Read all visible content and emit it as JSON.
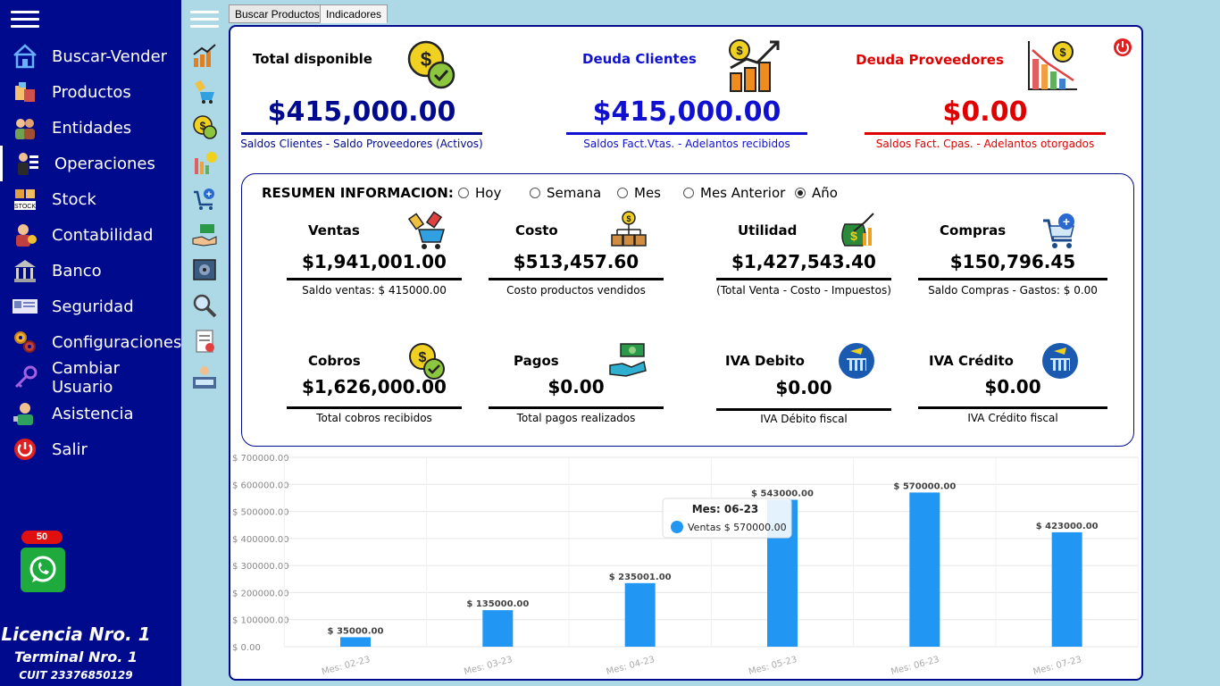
{
  "sidebar": {
    "items": [
      {
        "label": "Buscar-Vender",
        "icon": "house-icon"
      },
      {
        "label": "Productos",
        "icon": "products-icon"
      },
      {
        "label": "Entidades",
        "icon": "people-icon"
      },
      {
        "label": "Operaciones",
        "icon": "operations-icon"
      },
      {
        "label": "Stock",
        "icon": "stock-icon"
      },
      {
        "label": "Contabilidad",
        "icon": "accounting-icon"
      },
      {
        "label": "Banco",
        "icon": "bank-icon"
      },
      {
        "label": "Seguridad",
        "icon": "security-icon"
      },
      {
        "label": "Configuraciones",
        "icon": "gears-icon"
      },
      {
        "label": "Cambiar Usuario",
        "icon": "key-icon"
      },
      {
        "label": "Asistencia",
        "icon": "assistance-icon"
      },
      {
        "label": "Salir",
        "icon": "power-icon"
      }
    ],
    "whatsapp_badge": "50",
    "license": "Licencia Nro. 1",
    "terminal": "Terminal Nro. 1",
    "cuit": "CUIT 23376850129"
  },
  "tabs": [
    "Buscar Productos",
    "Indicadores"
  ],
  "top_cards": [
    {
      "title": "Total disponible",
      "value": "$415,000.00",
      "sub": "Saldos Clientes - Saldo Proveedores (Activos)",
      "color": "#000a8c",
      "title_color": "#000a8c"
    },
    {
      "title": "Deuda Clientes",
      "value": "$415,000.00",
      "sub": "Saldos Fact.Vtas. - Adelantos recibidos",
      "color": "#1010d0",
      "title_color": "#1010d0"
    },
    {
      "title": "Deuda Proveedores",
      "value": "$0.00",
      "sub": "Saldos Fact. Cpas. - Adelantos otorgados",
      "color": "#e00000",
      "title_color": "#e00000"
    }
  ],
  "summary": {
    "title": "RESUMEN INFORMACION:",
    "periods": [
      {
        "label": "Hoy",
        "selected": false
      },
      {
        "label": "Semana",
        "selected": false
      },
      {
        "label": "Mes",
        "selected": false
      },
      {
        "label": "Mes Anterior",
        "selected": false
      },
      {
        "label": "Año",
        "selected": true
      }
    ],
    "kpis": [
      {
        "title": "Ventas",
        "value": "$1,941,001.00",
        "sub": "Saldo ventas: $  415000.00",
        "icon": "shopping-cart-icon"
      },
      {
        "title": "Costo",
        "value": "$513,457.60",
        "sub": "Costo productos vendidos",
        "icon": "boxes-icon"
      },
      {
        "title": "Utilidad",
        "value": "$1,427,543.40",
        "sub": "(Total Venta - Costo - Impuestos)",
        "icon": "money-bag-icon"
      },
      {
        "title": "Compras",
        "value": "$150,796.45",
        "sub": "Saldo Compras - Gastos: $  0.00",
        "icon": "cart-add-icon"
      },
      {
        "title": "Cobros",
        "value": "$1,626,000.00",
        "sub": "Total cobros recibidos",
        "icon": "coin-check-icon"
      },
      {
        "title": "Pagos",
        "value": "$0.00",
        "sub": "Total pagos realizados",
        "icon": "payment-hand-icon"
      },
      {
        "title": "IVA Debito",
        "value": "$0.00",
        "sub": "IVA Débito fiscal",
        "icon": "tax-icon"
      },
      {
        "title": "IVA Crédito",
        "value": "$0.00",
        "sub": "IVA Crédito fiscal",
        "icon": "tax-icon"
      }
    ]
  },
  "chart_data": {
    "type": "bar",
    "categories": [
      "Mes: 02-23",
      "Mes: 03-23",
      "Mes: 04-23",
      "Mes: 05-23",
      "Mes: 06-23",
      "Mes: 07-23"
    ],
    "series": [
      {
        "name": "Ventas",
        "values": [
          35000,
          135000,
          235001,
          543000,
          570000,
          423000
        ],
        "color": "#2196f3"
      }
    ],
    "data_labels": [
      "$ 35000.00",
      "$ 135000.00",
      "$ 235001.00",
      "$ 543000.00",
      "$ 570000.00",
      "$ 423000.00"
    ],
    "y_ticks": [
      "$ 0.00",
      "$ 100000.00",
      "$ 200000.00",
      "$ 300000.00",
      "$ 400000.00",
      "$ 500000.00",
      "$ 600000.00",
      "$ 700000.00"
    ],
    "ylim": [
      0,
      700000
    ],
    "grid": true,
    "tooltip": {
      "title": "Mes: 06-23",
      "text": "Ventas  $ 570000.00"
    }
  }
}
